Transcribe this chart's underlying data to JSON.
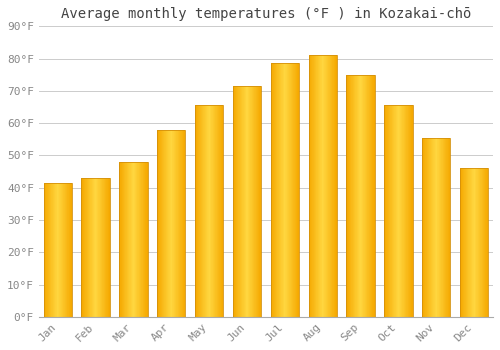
{
  "title": "Average monthly temperatures (°F ) in Kozakai-chō",
  "months": [
    "Jan",
    "Feb",
    "Mar",
    "Apr",
    "May",
    "Jun",
    "Jul",
    "Aug",
    "Sep",
    "Oct",
    "Nov",
    "Dec"
  ],
  "values": [
    41.5,
    43.0,
    48.0,
    58.0,
    65.5,
    71.5,
    78.5,
    81.0,
    75.0,
    65.5,
    55.5,
    46.0
  ],
  "bar_color_center": "#FFD740",
  "bar_color_edge": "#F5A800",
  "ylim": [
    0,
    90
  ],
  "yticks": [
    0,
    10,
    20,
    30,
    40,
    50,
    60,
    70,
    80,
    90
  ],
  "ytick_labels": [
    "0°F",
    "10°F",
    "20°F",
    "30°F",
    "40°F",
    "50°F",
    "60°F",
    "70°F",
    "80°F",
    "90°F"
  ],
  "background_color": "#FFFFFF",
  "grid_color": "#CCCCCC",
  "title_fontsize": 10,
  "tick_fontsize": 8,
  "font_family": "monospace",
  "tick_color": "#888888",
  "bar_width": 0.75
}
